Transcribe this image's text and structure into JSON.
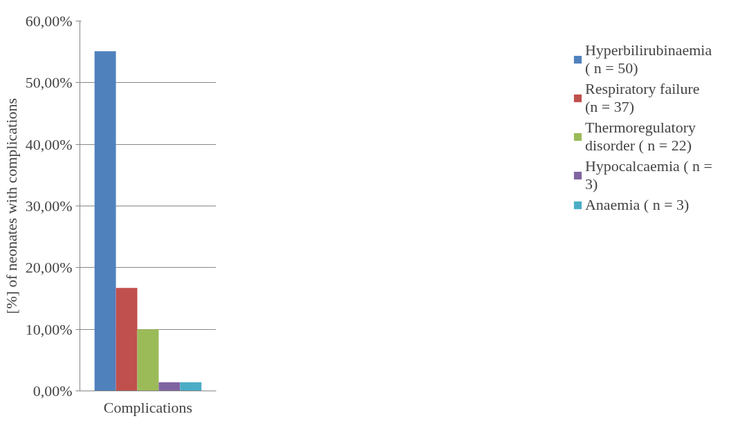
{
  "chart_data": {
    "type": "bar",
    "ylabel": "[%] of neonates with complications",
    "categories": [
      "Complications"
    ],
    "series": [
      {
        "name": "Hyperbilirubinaemia ( n = 50)",
        "color": "#4f81bd",
        "values": [
          55.1
        ]
      },
      {
        "name": "Respiratory failure (n = 37)",
        "color": "#c0504d",
        "values": [
          16.7
        ]
      },
      {
        "name": "Thermoregulatory disorder ( n = 22)",
        "color": "#9bbb59",
        "values": [
          10.0
        ]
      },
      {
        "name": "Hypocalcaemia ( n = 3)",
        "color": "#8064a2",
        "values": [
          1.4
        ]
      },
      {
        "name": "Anaemia ( n = 3)",
        "color": "#4bacc6",
        "values": [
          1.4
        ]
      }
    ],
    "ylim": [
      0,
      60
    ],
    "yticks": [
      {
        "value": 0,
        "label": "0,00%"
      },
      {
        "value": 10,
        "label": "10,00%"
      },
      {
        "value": 20,
        "label": "20,00%"
      },
      {
        "value": 30,
        "label": "30,00%"
      },
      {
        "value": 40,
        "label": "40,00%"
      },
      {
        "value": 50,
        "label": "50,00%"
      },
      {
        "value": 60,
        "label": "60,00%"
      }
    ],
    "grid": "y",
    "legend": "right"
  }
}
